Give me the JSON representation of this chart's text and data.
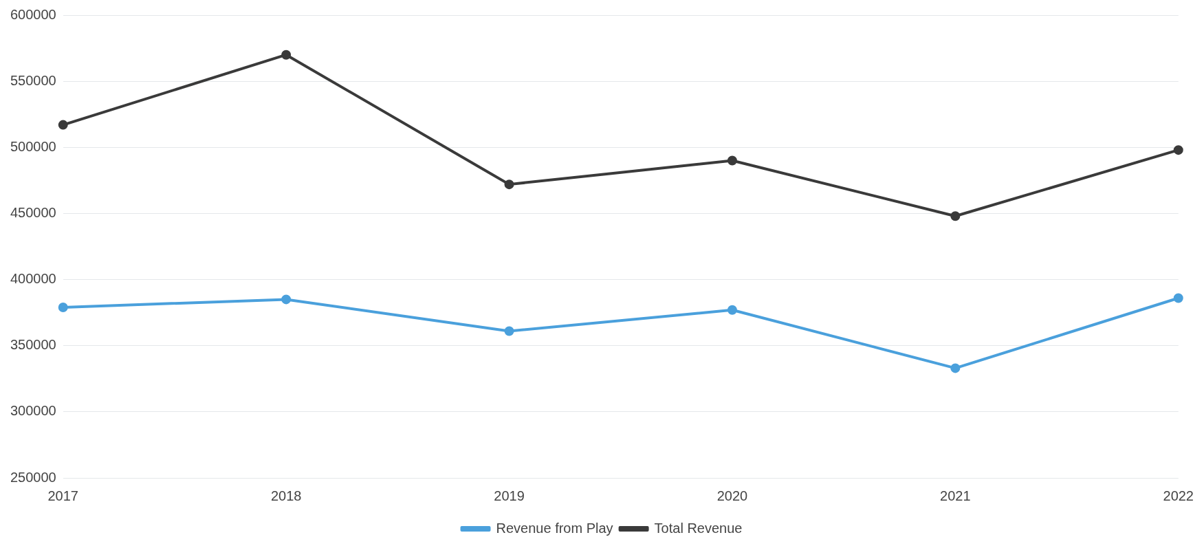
{
  "chart_data": {
    "type": "line",
    "categories": [
      "2017",
      "2018",
      "2019",
      "2020",
      "2021",
      "2022"
    ],
    "series": [
      {
        "name": "Revenue from Play",
        "color": "#4aa0dc",
        "values": [
          379000,
          385000,
          361000,
          377000,
          333000,
          386000
        ]
      },
      {
        "name": "Total Revenue",
        "color": "#3a3a3a",
        "values": [
          517000,
          570000,
          472000,
          490000,
          448000,
          498000
        ]
      }
    ],
    "ylim": [
      250000,
      600000
    ],
    "yticks": [
      250000,
      300000,
      350000,
      400000,
      450000,
      500000,
      550000,
      600000
    ],
    "grid": "y",
    "legend": "bottom",
    "marker": "circle",
    "line_style": "solid"
  }
}
